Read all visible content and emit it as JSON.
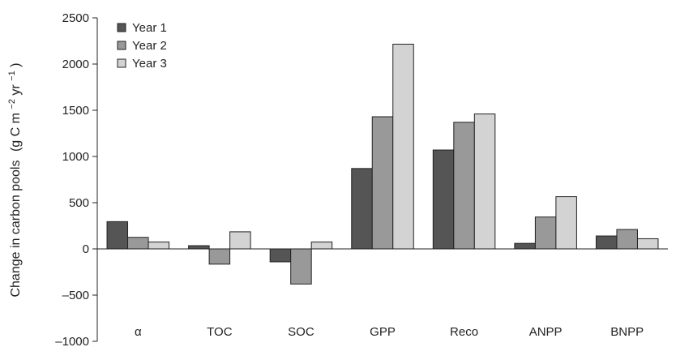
{
  "chart_data": {
    "type": "bar",
    "title": "",
    "xlabel": "",
    "ylabel": "Change in carbon pools",
    "ylabel_unit_parts": [
      "(g C m",
      "−2",
      " yr",
      "−1",
      ")"
    ],
    "categories": [
      "α",
      "TOC",
      "SOC",
      "GPP",
      "Reco",
      "ANPP",
      "BNPP"
    ],
    "series": [
      {
        "name": "Year 1",
        "color": "#555555",
        "values": [
          295,
          35,
          -140,
          870,
          1070,
          60,
          140
        ]
      },
      {
        "name": "Year 2",
        "color": "#999999",
        "values": [
          125,
          -165,
          -380,
          1430,
          1370,
          345,
          210
        ]
      },
      {
        "name": "Year 3",
        "color": "#d3d3d3",
        "values": [
          75,
          185,
          75,
          2215,
          1460,
          565,
          110
        ]
      }
    ],
    "ylim": [
      -1000,
      2500
    ],
    "yticks": [
      -1000,
      -500,
      0,
      500,
      1000,
      1500,
      2000,
      2500
    ],
    "ytick_labels": [
      "–1000",
      "–500",
      "0",
      "500",
      "1000",
      "1500",
      "2000",
      "2500"
    ],
    "grid": false,
    "legend_position": "top-left"
  }
}
